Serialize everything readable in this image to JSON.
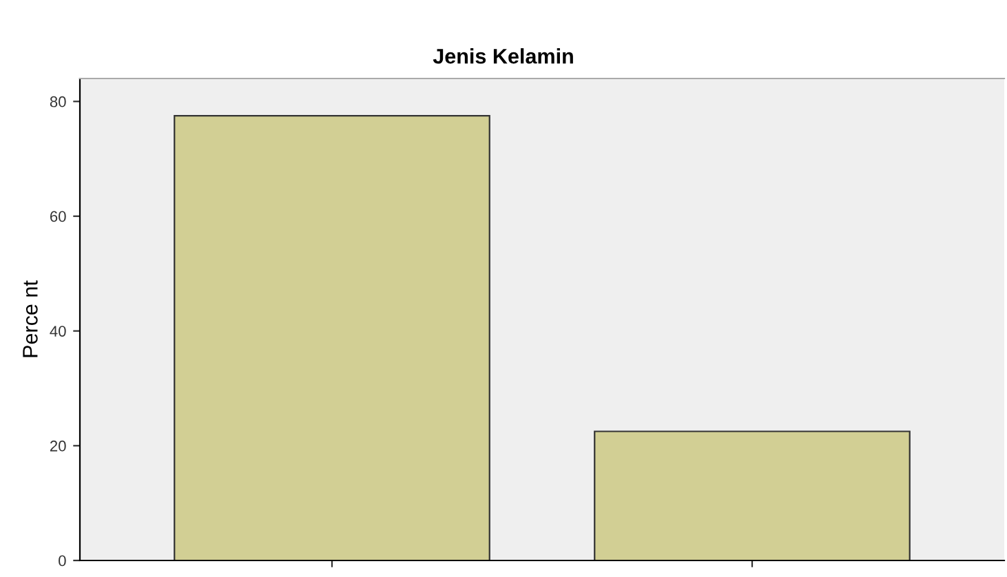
{
  "chart_data": {
    "type": "bar",
    "title": "Jenis Kelamin",
    "ylabel": "Perce nt",
    "categories": [
      null,
      null
    ],
    "values": [
      77.5,
      22.5
    ],
    "color": "#d2cf94",
    "ylim": [
      0,
      84
    ],
    "yticks": [
      0,
      20,
      40,
      60,
      80
    ],
    "grid": false
  }
}
